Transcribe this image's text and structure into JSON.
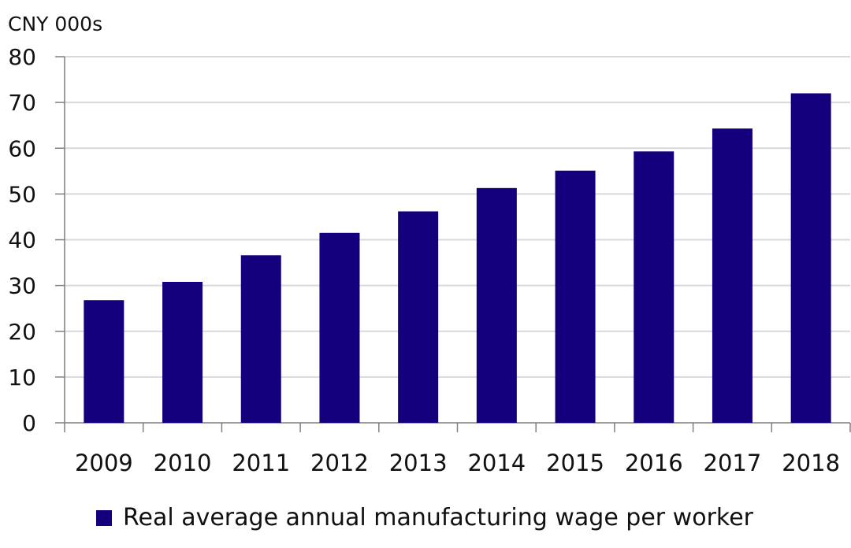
{
  "chart_data": {
    "type": "bar",
    "unit_label": "CNY 000s",
    "categories": [
      "2009",
      "2010",
      "2011",
      "2012",
      "2013",
      "2014",
      "2015",
      "2016",
      "2017",
      "2018"
    ],
    "series": [
      {
        "name": "Real average annual manufacturing wage per worker",
        "values": [
          26.8,
          30.8,
          36.6,
          41.5,
          46.2,
          51.3,
          55.1,
          59.3,
          64.3,
          72.0
        ]
      }
    ],
    "yticks": [
      "0",
      "10",
      "20",
      "30",
      "40",
      "50",
      "60",
      "70",
      "80"
    ],
    "ylim": [
      0,
      80
    ],
    "grid": true,
    "legend_position": "bottom",
    "colors": {
      "bar": "#14007d",
      "grid": "#d9d9d9",
      "axis": "#7f7f7f"
    }
  }
}
